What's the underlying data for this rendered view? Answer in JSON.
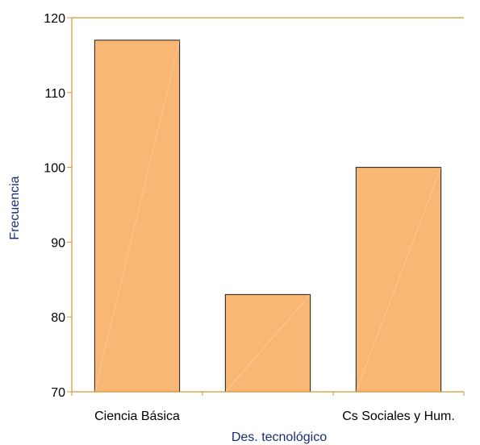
{
  "chart_data": {
    "type": "bar",
    "categories": [
      "Ciencia Básica",
      "Des. tecnológico",
      "Cs Sociales y Hum."
    ],
    "visible_x_tick_labels": [
      "Ciencia Básica",
      "Cs Sociales y Hum."
    ],
    "values": [
      117,
      83,
      100
    ],
    "title": "",
    "xlabel": "Des. tecnológico",
    "ylabel": "Frecuencia",
    "ylim": [
      70,
      120
    ],
    "yticks": [
      70,
      80,
      90,
      100,
      110,
      120
    ],
    "grid": false,
    "legend": "none",
    "colors": {
      "bar_fill": "#f9b775",
      "bar_stroke": "#1a1a1a",
      "axis_line": "#d4952f",
      "axis_title": "#1a2b78",
      "tick_text": "#000000"
    }
  }
}
